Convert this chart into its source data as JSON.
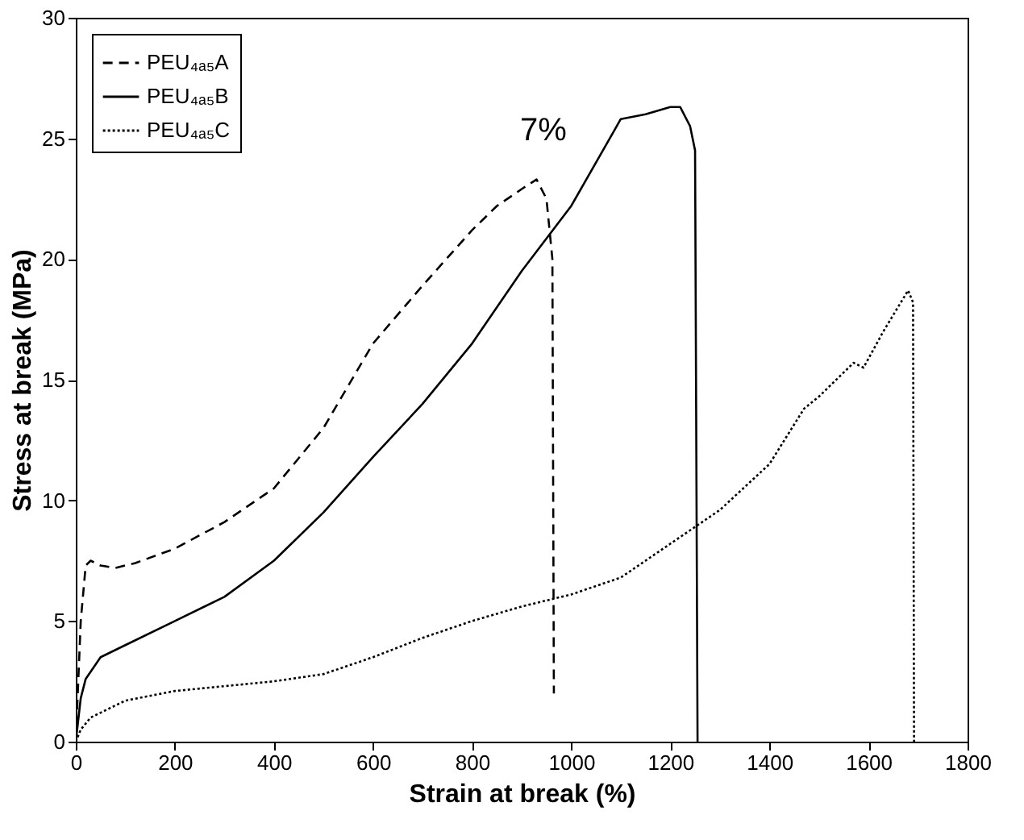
{
  "chart_data": {
    "type": "line",
    "xlabel": "Strain at break (%)",
    "ylabel": "Stress at break (MPa)",
    "xlim": [
      0,
      1800
    ],
    "xticks": [
      0,
      200,
      400,
      600,
      800,
      1000,
      1200,
      1400,
      1600,
      1800
    ],
    "ylim": [
      0,
      30
    ],
    "yticks": [
      0,
      5,
      10,
      15,
      20,
      25,
      30
    ],
    "grid": false,
    "legend": "top left",
    "marker": "none",
    "annotations": [
      "7%"
    ],
    "series": [
      {
        "name": "PEU₄ₐ₅A",
        "color": "#000000",
        "line_style": "dashed",
        "x": [
          0,
          10,
          20,
          30,
          50,
          80,
          120,
          200,
          300,
          400,
          500,
          600,
          700,
          800,
          850,
          900,
          930,
          950,
          962,
          965
        ],
        "values": [
          0,
          5,
          7.3,
          7.5,
          7.3,
          7.2,
          7.4,
          8.0,
          9.1,
          10.5,
          13.0,
          16.5,
          18.9,
          21.2,
          22.2,
          22.9,
          23.3,
          22.5,
          20,
          2
        ]
      },
      {
        "name": "PEU₄ₐ₅B",
        "color": "#000000",
        "line_style": "solid",
        "x": [
          0,
          10,
          20,
          50,
          100,
          200,
          300,
          400,
          500,
          600,
          700,
          800,
          900,
          1000,
          1050,
          1100,
          1150,
          1200,
          1220,
          1240,
          1250,
          1255
        ],
        "values": [
          0,
          1.8,
          2.6,
          3.5,
          4.0,
          5.0,
          6.0,
          7.5,
          9.5,
          11.8,
          14.0,
          16.5,
          19.5,
          22.2,
          24.0,
          25.8,
          26.0,
          26.3,
          26.3,
          25.5,
          24.5,
          0
        ]
      },
      {
        "name": "PEU₄ₐ₅C",
        "color": "#000000",
        "line_style": "dotted",
        "x": [
          0,
          10,
          30,
          100,
          200,
          300,
          400,
          500,
          600,
          700,
          800,
          900,
          1000,
          1100,
          1200,
          1300,
          1400,
          1470,
          1500,
          1570,
          1590,
          1630,
          1680,
          1690,
          1692
        ],
        "values": [
          0,
          0.5,
          1.0,
          1.7,
          2.1,
          2.3,
          2.5,
          2.8,
          3.5,
          4.3,
          5.0,
          5.6,
          6.1,
          6.8,
          8.2,
          9.6,
          11.5,
          13.8,
          14.3,
          15.7,
          15.5,
          17.0,
          18.7,
          18.2,
          0
        ]
      }
    ]
  }
}
